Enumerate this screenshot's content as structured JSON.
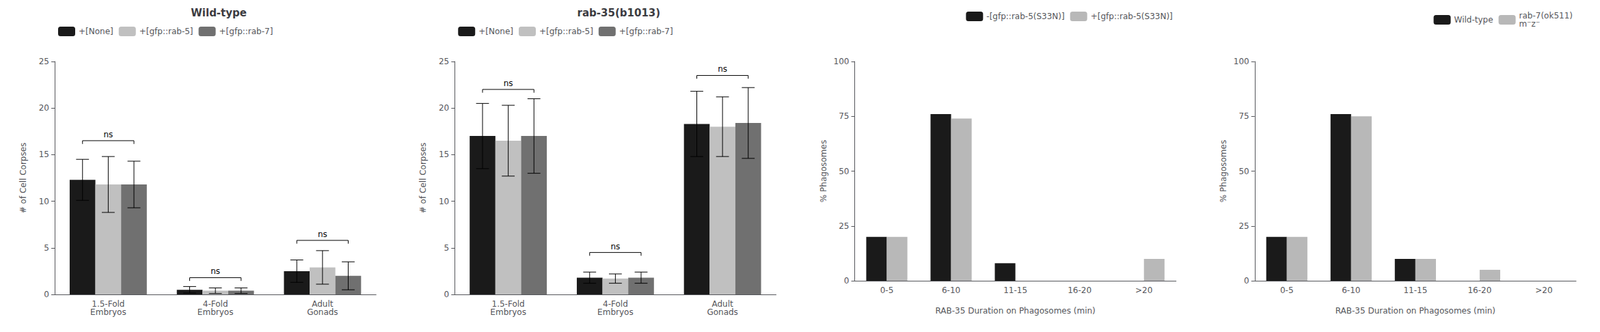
{
  "chart_data": [
    {
      "type": "bar",
      "title": "Wild-type",
      "ylabel": "# of Cell Corpses",
      "categories": [
        "1.5-Fold\nEmbryos",
        "4-Fold\nEmbryos",
        "Adult\nGonads"
      ],
      "series": [
        {
          "name": "+[None]",
          "color": "#1a1a1a",
          "values": [
            12.3,
            0.5,
            2.5
          ],
          "errors": [
            2.2,
            0.35,
            1.2
          ]
        },
        {
          "name": "+[gfp::rab-5]",
          "color": "#c0c0c0",
          "values": [
            11.8,
            0.4,
            2.9
          ],
          "errors": [
            3.0,
            0.3,
            1.8
          ]
        },
        {
          "name": "+[gfp::rab-7]",
          "color": "#707070",
          "values": [
            11.8,
            0.4,
            2.0
          ],
          "errors": [
            2.5,
            0.3,
            1.5
          ]
        }
      ],
      "annotations": [
        {
          "text": "ns",
          "category": "1.5-Fold\nEmbryos",
          "y": 16.5
        },
        {
          "text": "ns",
          "category": "4-Fold\nEmbryos",
          "y": 1.8
        },
        {
          "text": "ns",
          "category": "Adult\nGonads",
          "y": 5.8
        }
      ],
      "ylim": [
        0,
        25
      ],
      "yticks": [
        0,
        5,
        10,
        15,
        20,
        25
      ],
      "grid": false,
      "legend": "upper left"
    },
    {
      "type": "bar",
      "title": "rab-35(b1013)",
      "ylabel": "# of Cell Corpses",
      "categories": [
        "1.5-Fold\nEmbryos",
        "4-Fold\nEmbryos",
        "Adult\nGonads"
      ],
      "series": [
        {
          "name": "+[None]",
          "color": "#1a1a1a",
          "values": [
            17.0,
            1.8,
            18.3
          ],
          "errors": [
            3.5,
            0.6,
            3.5
          ]
        },
        {
          "name": "+[gfp::rab-5]",
          "color": "#c0c0c0",
          "values": [
            16.5,
            1.7,
            18.0
          ],
          "errors": [
            3.8,
            0.5,
            3.2
          ]
        },
        {
          "name": "+[gfp::rab-7]",
          "color": "#707070",
          "values": [
            17.0,
            1.8,
            18.4
          ],
          "errors": [
            4.0,
            0.6,
            3.8
          ]
        }
      ],
      "annotations": [
        {
          "text": "ns",
          "category": "1.5-Fold\nEmbryos",
          "y": 22.0
        },
        {
          "text": "ns",
          "category": "4-Fold\nEmbryos",
          "y": 4.5
        },
        {
          "text": "ns",
          "category": "Adult\nGonads",
          "y": 23.5
        }
      ],
      "ylim": [
        0,
        25
      ],
      "yticks": [
        0,
        5,
        10,
        15,
        20,
        25
      ],
      "grid": false,
      "legend": "upper left"
    },
    {
      "type": "bar",
      "ylabel": "% Phagosomes",
      "xlabel": "RAB-35 Duration on Phagosomes (min)",
      "categories": [
        "0-5",
        "6-10",
        "11-15",
        "16-20",
        ">20"
      ],
      "series": [
        {
          "name": "-[gfp::rab-5(S33N)]",
          "color": "#1a1a1a",
          "values": [
            20,
            76,
            8,
            0,
            0
          ]
        },
        {
          "name": "+[gfp::rab-5(S33N)]",
          "color": "#b8b8b8",
          "values": [
            20,
            74,
            0,
            0,
            10
          ]
        }
      ],
      "ylim": [
        0,
        100
      ],
      "yticks": [
        0,
        25,
        50,
        75,
        100
      ],
      "grid": false,
      "legend": "upper right"
    },
    {
      "type": "bar",
      "ylabel": "% Phagosomes",
      "xlabel": "RAB-35 Duration on Phagosomes (min)",
      "categories": [
        "0-5",
        "6-10",
        "11-15",
        "16-20",
        ">20"
      ],
      "series": [
        {
          "name": "Wild-type",
          "color": "#1a1a1a",
          "values": [
            20,
            76,
            10,
            0,
            0
          ]
        },
        {
          "name": "rab-7(ok511)\nm⁻z⁻",
          "color": "#b8b8b8",
          "values": [
            20,
            75,
            10,
            5,
            0
          ]
        }
      ],
      "ylim": [
        0,
        100
      ],
      "yticks": [
        0,
        25,
        50,
        75,
        100
      ],
      "grid": false,
      "legend": "upper right"
    }
  ]
}
